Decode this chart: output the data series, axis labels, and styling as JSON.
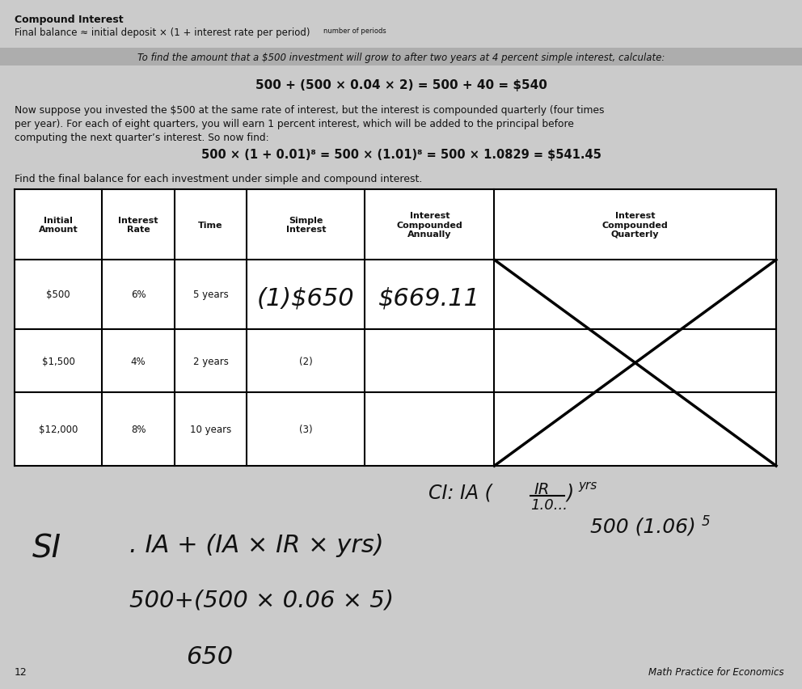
{
  "bg_color": "#cbcbcb",
  "title_line1": "Compound Interest",
  "title_line2": "Final balance ≈ initial deposit × (1 + interest rate per period)",
  "title_line2_suffix": "number of periods",
  "highlighted_text": "To find the amount that a $500 investment will grow to after two years at 4 percent simple interest, calculate:",
  "formula1": "500 + (500 × 0.04 × 2) = 500 + 40 = $540",
  "para_line1": "Now suppose you invested the $500 at the same rate of interest, but the interest is compounded quarterly (four times",
  "para_line2": "per year). For each of eight quarters, you will earn 1 percent interest, which will be added to the principal before",
  "para_line3": "computing the next quarter’s interest. So now find:",
  "formula2": "500 × (1 + 0.01)⁸ = 500 × (1.01)⁸ = 500 × 1.0829 = $541.45",
  "table_instruction": "Find the final balance for each investment under simple and compound interest.",
  "col_headers": [
    "Initial\nAmount",
    "Interest\nRate",
    "Time",
    "Simple\nInterest",
    "Interest\nCompounded\nAnnually",
    "Interest\nCompounded\nQuarterly"
  ],
  "rows": [
    [
      "$500",
      "6%",
      "5 years",
      "",
      "",
      ""
    ],
    [
      "$1,500",
      "4%",
      "2 years",
      "(2)",
      "",
      ""
    ],
    [
      "$12,000",
      "8%",
      "10 years",
      "(3)",
      "",
      ""
    ]
  ],
  "hw_si": "(1)$650",
  "hw_ca": "$669.11",
  "ci_text1": "CI: IA (IR",
  "ci_text2": "          1.0...)",
  "ci_exp": "yrs",
  "ci_500": "500 (1.06)",
  "ci_500_exp": "5",
  "si_line1": "SI . IA + (IA × IR × yrs)",
  "si_line2": "500+(500 × 0.06 × 5)",
  "si_line3": "650",
  "page_num": "12",
  "footer": "Math Practice for Economics"
}
